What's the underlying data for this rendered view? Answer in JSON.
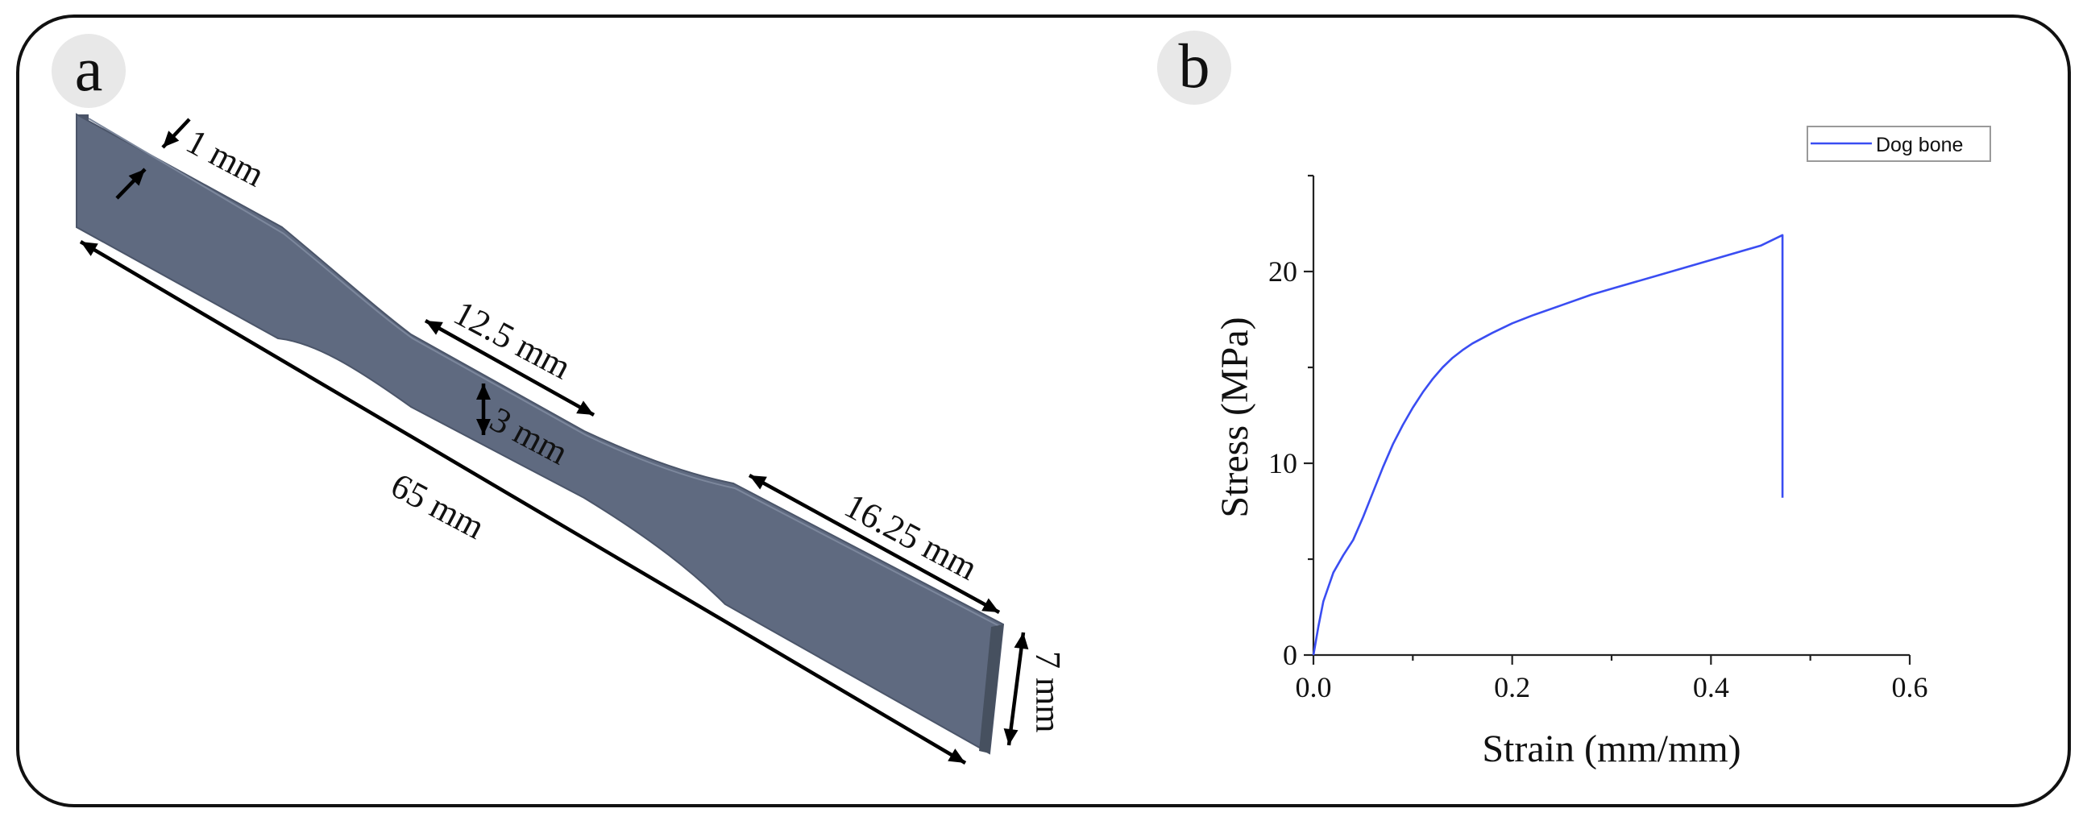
{
  "panel_a": {
    "label": "a",
    "dimensions": {
      "thickness": "1 mm",
      "total_length": "65 mm",
      "gauge_length": "12.5 mm",
      "gauge_width": "3 mm",
      "grip_length": "16.25 mm",
      "grip_width": "7 mm"
    },
    "specimen_color": "#5f6a80"
  },
  "panel_b": {
    "label": "b",
    "chart_data": {
      "type": "line",
      "xlabel": "Strain (mm/mm)",
      "ylabel": "Stress (MPa)",
      "xlim": [
        0,
        0.6
      ],
      "ylim": [
        0,
        25
      ],
      "xticks": [
        "0.0",
        "0.2",
        "0.4",
        "0.6"
      ],
      "yticks": [
        "0",
        "10",
        "20"
      ],
      "legend": {
        "position": "top-right"
      },
      "grid": false,
      "series": [
        {
          "name": "Dog bone",
          "color": "#3a4df2",
          "x": [
            0,
            0.005,
            0.01,
            0.02,
            0.03,
            0.04,
            0.05,
            0.06,
            0.07,
            0.08,
            0.09,
            0.1,
            0.11,
            0.12,
            0.13,
            0.14,
            0.15,
            0.16,
            0.18,
            0.2,
            0.22,
            0.25,
            0.28,
            0.3,
            0.35,
            0.4,
            0.45,
            0.472,
            0.472,
            0.472
          ],
          "y": [
            0,
            1.5,
            2.8,
            4.3,
            5.2,
            6.0,
            7.2,
            8.5,
            9.8,
            11.0,
            12.0,
            12.9,
            13.7,
            14.4,
            15.0,
            15.5,
            15.9,
            16.25,
            16.8,
            17.3,
            17.7,
            18.25,
            18.8,
            19.1,
            19.85,
            20.6,
            21.35,
            21.9,
            15.0,
            8.2
          ]
        }
      ]
    }
  }
}
